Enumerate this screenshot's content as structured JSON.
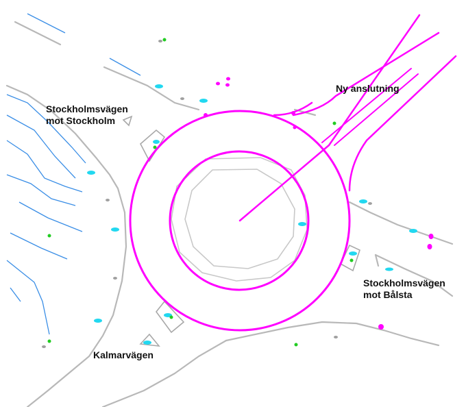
{
  "labels": {
    "new_connection": "Ny anslutning",
    "road_to_stockholm": {
      "line1": "Stockholmsvägen",
      "line2": "mot Stockholm"
    },
    "road_to_balsta": {
      "line1": "Stockholmsvägen",
      "line2": "mot Bålsta"
    },
    "kalmarvagen": "Kalmarvägen"
  },
  "colors": {
    "roundabout_proposal": "#ff00ff",
    "existing_curb": "#b8b8b8",
    "inner_island": "#c8c8c8",
    "contour_lines": "#3a8ee6",
    "cyan_markers": "#22d8f0",
    "green_markers": "#22cc22"
  },
  "layers": [
    "roundabout-proposal",
    "existing-curbs",
    "contour-lines",
    "point-markers"
  ]
}
